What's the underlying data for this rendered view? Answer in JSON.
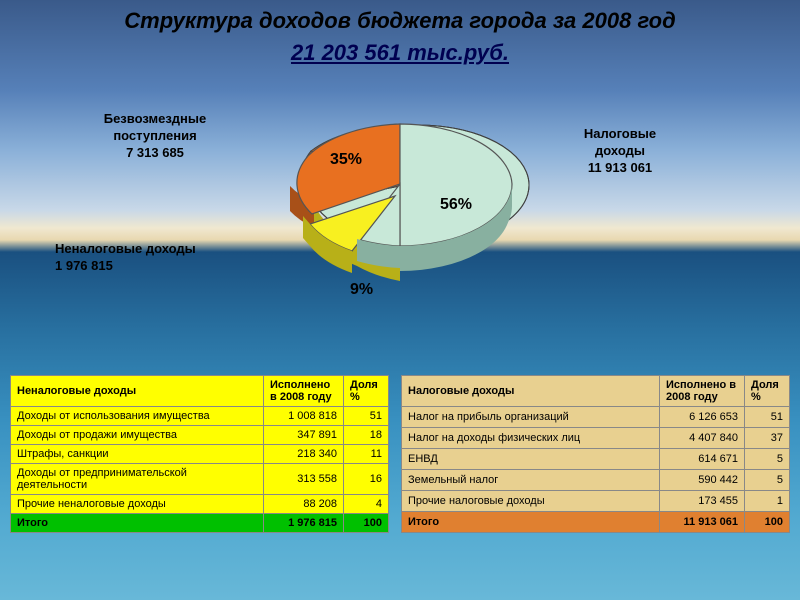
{
  "title": "Структура доходов бюджета города за 2008 год",
  "subtitle": "21 203 561 тыс.руб.",
  "pie": {
    "type": "pie3d",
    "slices": [
      {
        "label_lines": [
          "Налоговые",
          "доходы"
        ],
        "value": "11 913 061",
        "pct": "56%",
        "color": "#c8e8d8",
        "side_color": "#88b0a0"
      },
      {
        "label_lines": [
          "Неналоговые доходы"
        ],
        "value": "1 976 815",
        "pct": "9%",
        "color": "#f8f020",
        "side_color": "#b8b018"
      },
      {
        "label_lines": [
          "Безвозмездные",
          "поступления"
        ],
        "value": "7 313 685",
        "pct": "35%",
        "color": "#e87020",
        "side_color": "#a85018"
      }
    ],
    "outline": "#404040"
  },
  "table1": {
    "headers": [
      "Неналоговые доходы",
      "Исполнено в 2008 году",
      "Доля %"
    ],
    "rows": [
      [
        "Доходы от использования имущества",
        "1 008 818",
        "51"
      ],
      [
        "Доходы от продажи имущества",
        "347 891",
        "18"
      ],
      [
        "Штрафы, санкции",
        "218 340",
        "11"
      ],
      [
        "Доходы от предпринимательской деятельности",
        "313 558",
        "16"
      ],
      [
        "Прочие неналоговые доходы",
        "88 208",
        "4"
      ]
    ],
    "total": [
      "Итого",
      "1 976 815",
      "100"
    ]
  },
  "table2": {
    "headers": [
      "Налоговые доходы",
      "Исполнено в 2008 году",
      "Доля %"
    ],
    "rows": [
      [
        "Налог на прибыль организаций",
        "6 126 653",
        "51"
      ],
      [
        "Налог на доходы физических лиц",
        "4 407 840",
        "37"
      ],
      [
        "ЕНВД",
        "614 671",
        "5"
      ],
      [
        "Земельный налог",
        "590 442",
        "5"
      ],
      [
        "Прочие налоговые доходы",
        "173 455",
        "1"
      ]
    ],
    "total": [
      "Итого",
      "11 913 061",
      "100"
    ]
  }
}
